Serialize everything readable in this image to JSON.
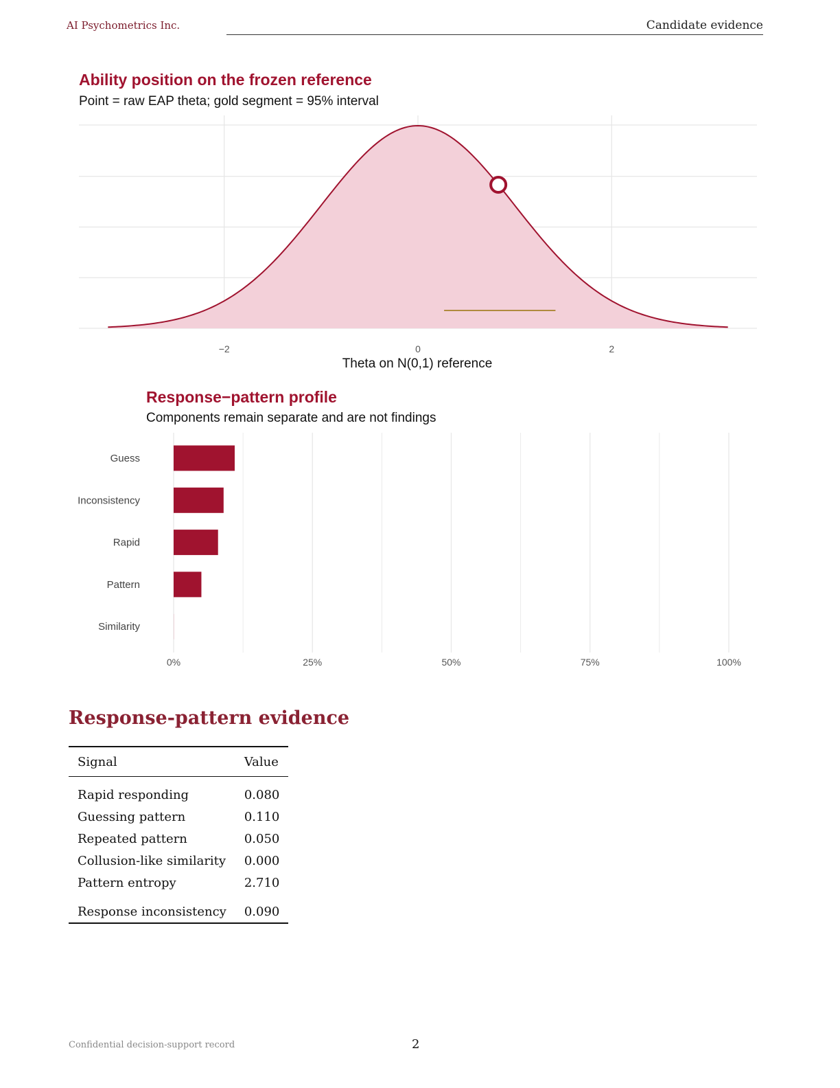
{
  "header": {
    "company": "AI Psychometrics Inc.",
    "section": "Candidate evidence"
  },
  "charts": {
    "ability": {
      "title": "Ability position on the frozen reference",
      "subtitle": "Point = raw EAP theta; gold segment = 95% interval"
    },
    "profile": {
      "title": "Response−pattern profile",
      "subtitle": "Components remain separate and are not findings"
    }
  },
  "chart_data": [
    {
      "type": "area",
      "title": "Ability position on the frozen reference",
      "subtitle": "Point = raw EAP theta; gold segment = 95% interval",
      "xlabel": "Theta on N(0,1) reference",
      "ylabel": "",
      "distribution": "N(0,1) density",
      "xlim": [
        -3.2,
        3.2
      ],
      "x_ticks": [
        -2,
        0,
        2
      ],
      "x_tick_labels": [
        "−2",
        "0",
        "2"
      ],
      "grid": true,
      "theta_point": 0.83,
      "interval_95": [
        0.27,
        1.42
      ],
      "colors": {
        "curve": "#a0132f",
        "fill": "#f3d0d9",
        "interval": "#b08a3e"
      }
    },
    {
      "type": "bar",
      "orientation": "horizontal",
      "title": "Response−pattern profile",
      "subtitle": "Components remain separate and are not findings",
      "categories": [
        "Guess",
        "Inconsistency",
        "Rapid",
        "Pattern",
        "Similarity"
      ],
      "values": [
        0.11,
        0.09,
        0.08,
        0.05,
        0.0
      ],
      "xlim": [
        0,
        1
      ],
      "x_ticks": [
        0,
        0.25,
        0.5,
        0.75,
        1
      ],
      "x_tick_labels": [
        "0%",
        "25%",
        "50%",
        "75%",
        "100%"
      ],
      "grid": true,
      "color": "#a0132f"
    }
  ],
  "section": {
    "title": "Response-pattern evidence"
  },
  "table": {
    "headers": [
      "Signal",
      "Value"
    ],
    "rows": [
      [
        "Rapid responding",
        "0.080"
      ],
      [
        "Guessing pattern",
        "0.110"
      ],
      [
        "Repeated pattern",
        "0.050"
      ],
      [
        "Collusion-like similarity",
        "0.000"
      ],
      [
        "Pattern entropy",
        "2.710"
      ],
      [
        "Response inconsistency",
        "0.090"
      ]
    ]
  },
  "footer": {
    "note": "Confidential decision-support record",
    "page": "2"
  }
}
